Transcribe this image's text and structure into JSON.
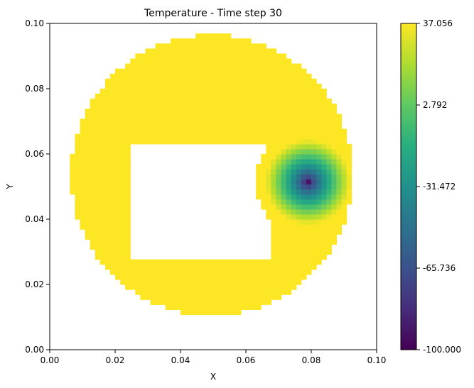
{
  "chart_data": {
    "type": "heatmap",
    "title": "Temperature - Time step 30",
    "xlabel": "X",
    "ylabel": "Y",
    "xlim": [
      0.0,
      0.1
    ],
    "ylim": [
      0.0,
      0.1
    ],
    "xticks": [
      "0.00",
      "0.02",
      "0.04",
      "0.06",
      "0.08",
      "0.10"
    ],
    "yticks": [
      "0.00",
      "0.02",
      "0.04",
      "0.06",
      "0.08",
      "0.10"
    ],
    "colormap": "viridis",
    "colorbar": {
      "min": -100.0,
      "max": 37.056,
      "ticks": [
        {
          "value": 37.056,
          "label": "37.056"
        },
        {
          "value": 2.792,
          "label": "2.792"
        },
        {
          "value": -31.472,
          "label": "-31.472"
        },
        {
          "value": -65.736,
          "label": "-65.736"
        },
        {
          "value": -100.0,
          "label": "-100.000"
        }
      ]
    },
    "domain": {
      "shape": "ring",
      "center_x": 0.0495,
      "center_y": 0.0535,
      "outer_radius": 0.043,
      "inner_region": {
        "x_range": [
          0.025,
          0.067
        ],
        "y_range": [
          0.028,
          0.063
        ]
      }
    },
    "field": {
      "background_temperature": 37.056,
      "cold_spot": {
        "x": 0.079,
        "y": 0.0515,
        "temperature": -100.0,
        "radius": 0.013
      }
    },
    "grid": false,
    "legend": "colorbar-right"
  },
  "colors": {
    "axis": "#000000",
    "background": "#ffffff"
  }
}
